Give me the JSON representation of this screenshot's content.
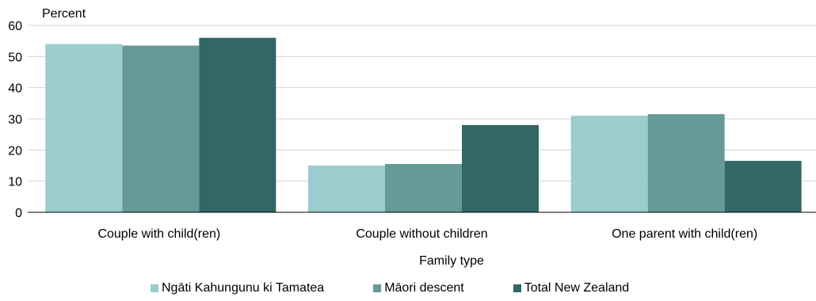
{
  "chart_data": {
    "type": "bar",
    "categories": [
      "Couple with child(ren)",
      "Couple without children",
      "One parent with child(ren)"
    ],
    "series": [
      {
        "name": "Ngāti Kahungunu ki Tamatea",
        "values": [
          54,
          15,
          31
        ],
        "color": "#9ccccd"
      },
      {
        "name": "Māori descent",
        "values": [
          53.5,
          15.5,
          31.5
        ],
        "color": "#659a97"
      },
      {
        "name": "Total New Zealand",
        "values": [
          56,
          28,
          16.5
        ],
        "color": "#336666"
      }
    ],
    "ylabel": "Percent",
    "xlabel": "Family type",
    "ylim": [
      0,
      60
    ],
    "yticks": [
      0,
      10,
      20,
      30,
      40,
      50,
      60
    ],
    "grid": true,
    "legend": "bottom"
  }
}
